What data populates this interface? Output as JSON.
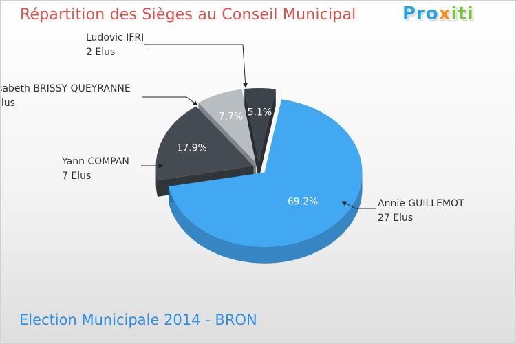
{
  "chart_data": {
    "type": "pie",
    "title": "Répartition des Sièges au Conseil Municipal",
    "subtitle": "Election Municipale 2014 - BRON",
    "slices": [
      {
        "name": "Annie GUILLEMOT",
        "value": 27,
        "unit_label": "27 Elus",
        "percent_label": "69.2%",
        "color": "#42a8f2"
      },
      {
        "name": "Yann COMPAN",
        "value": 7,
        "unit_label": "7 Elus",
        "percent_label": "17.9%",
        "color": "#454b52"
      },
      {
        "name": "Isabeth BRISSY QUEYRANNE",
        "value": 3,
        "unit_label": "Elus",
        "percent_label": "7.7%",
        "color": "#b8bdc2"
      },
      {
        "name": "Ludovic IFRI",
        "value": 2,
        "unit_label": "2 Elus",
        "percent_label": "5.1%",
        "color": "#3d434a"
      }
    ]
  },
  "logo": {
    "p1": "Pro",
    "p2": "x",
    "p3": "iti"
  }
}
